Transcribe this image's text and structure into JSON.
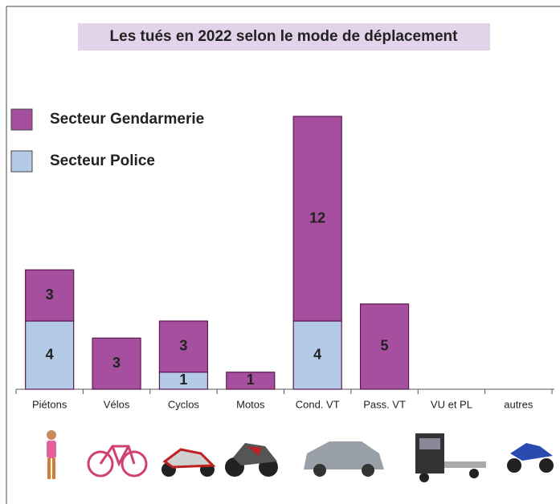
{
  "chart_data": {
    "type": "stacked_bar",
    "title": "Les tués en 2022 selon le mode de déplacement",
    "categories": [
      "Piétons",
      "Vélos",
      "Cyclos",
      "Motos",
      "Cond. VT",
      "Pass. VT",
      "VU et PL",
      "autres"
    ],
    "series": [
      {
        "name": "Secteur Police",
        "color": "#b4cbe8",
        "values": [
          4,
          0,
          1,
          0,
          4,
          0,
          0,
          0
        ]
      },
      {
        "name": "Secteur Gendarmerie",
        "color": "#a64f9f",
        "values": [
          3,
          3,
          3,
          1,
          12,
          5,
          0,
          0
        ]
      }
    ]
  }
}
